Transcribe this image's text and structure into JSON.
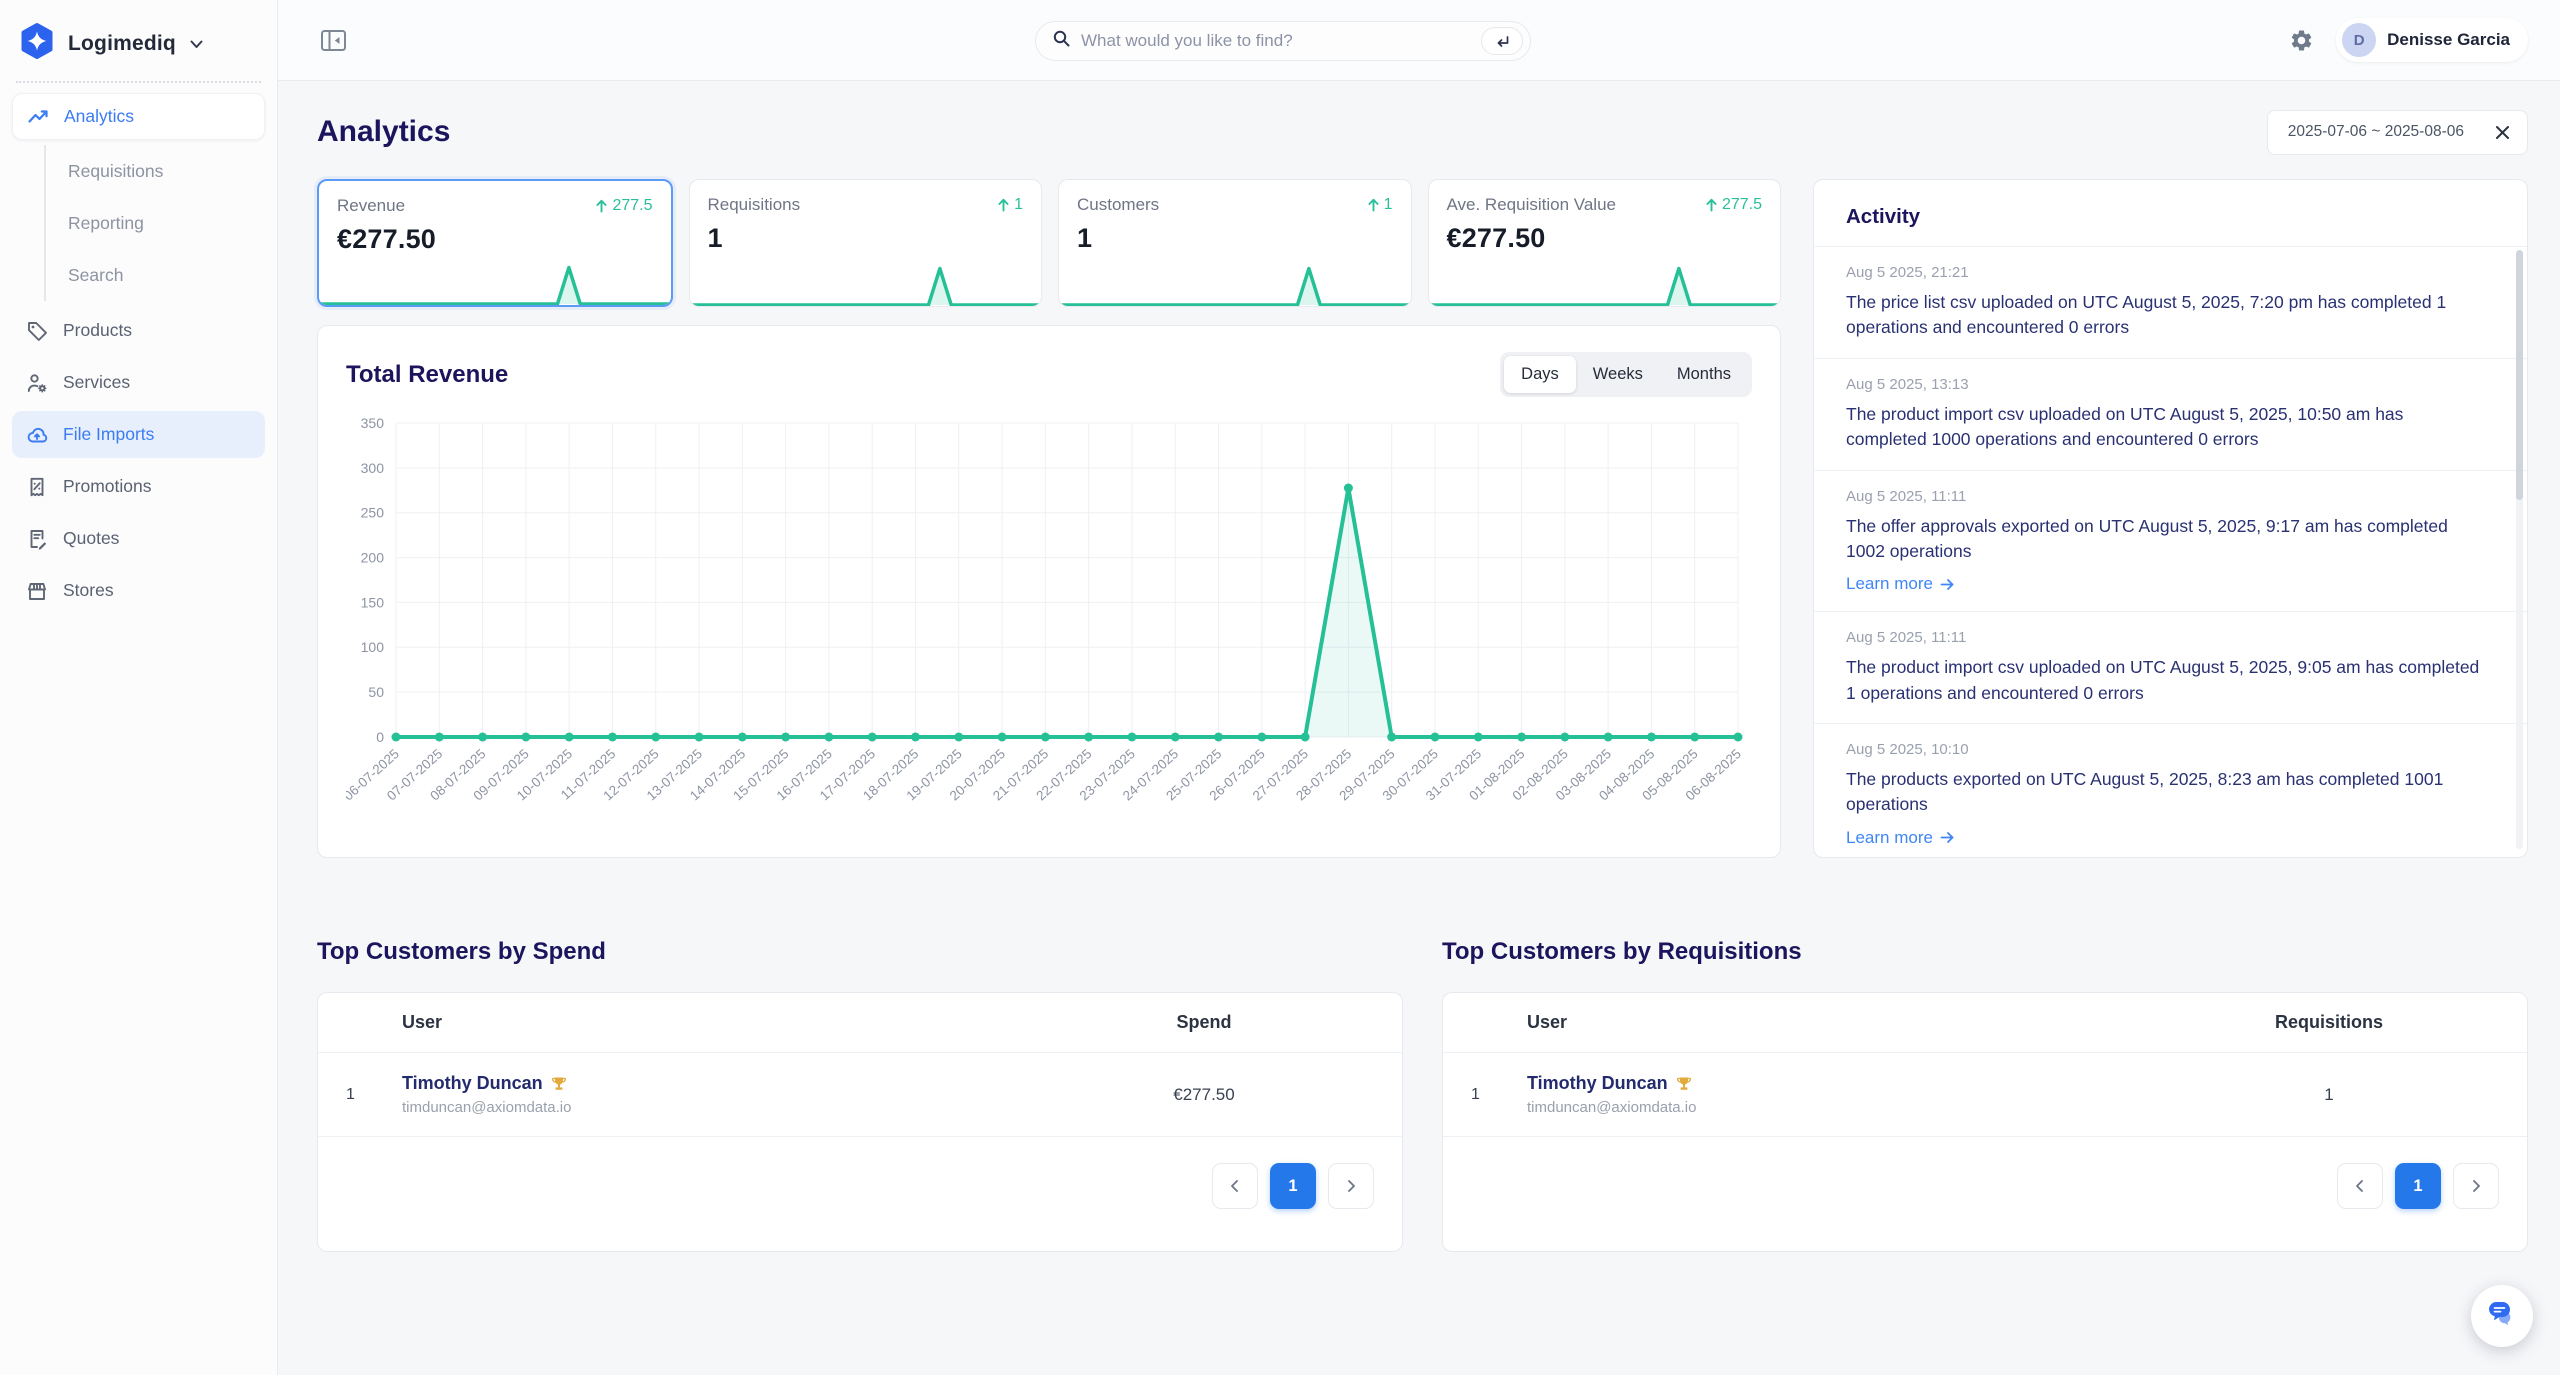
{
  "brand": {
    "name": "Logimediq"
  },
  "topbar": {
    "search_placeholder": "What would you like to find?",
    "user": {
      "name": "Denisse Garcia",
      "initial": "D"
    }
  },
  "sidebar": {
    "items": [
      {
        "label": "Analytics",
        "active": true
      },
      {
        "label": "Requisitions"
      },
      {
        "label": "Reporting"
      },
      {
        "label": "Search"
      },
      {
        "label": "Products"
      },
      {
        "label": "Services"
      },
      {
        "label": "File Imports",
        "selected": true
      },
      {
        "label": "Promotions"
      },
      {
        "label": "Quotes"
      },
      {
        "label": "Stores"
      }
    ]
  },
  "page": {
    "title": "Analytics",
    "date_range": "2025-07-06 ~ 2025-08-06"
  },
  "kpis": [
    {
      "label": "Revenue",
      "delta": "277.5",
      "value": "€277.50",
      "selected": true
    },
    {
      "label": "Requisitions",
      "delta": "1",
      "value": "1"
    },
    {
      "label": "Customers",
      "delta": "1",
      "value": "1"
    },
    {
      "label": "Ave. Requisition Value",
      "delta": "277.5",
      "value": "€277.50"
    }
  ],
  "revenue_chart": {
    "title": "Total Revenue",
    "tabs": [
      {
        "label": "Days",
        "active": true
      },
      {
        "label": "Weeks"
      },
      {
        "label": "Months"
      }
    ]
  },
  "chart_data": {
    "type": "line",
    "title": "Total Revenue",
    "x": [
      "06-07-2025",
      "07-07-2025",
      "08-07-2025",
      "09-07-2025",
      "10-07-2025",
      "11-07-2025",
      "12-07-2025",
      "13-07-2025",
      "14-07-2025",
      "15-07-2025",
      "16-07-2025",
      "17-07-2025",
      "18-07-2025",
      "19-07-2025",
      "20-07-2025",
      "21-07-2025",
      "22-07-2025",
      "23-07-2025",
      "24-07-2025",
      "25-07-2025",
      "26-07-2025",
      "27-07-2025",
      "28-07-2025",
      "29-07-2025",
      "30-07-2025",
      "31-07-2025",
      "01-08-2025",
      "02-08-2025",
      "03-08-2025",
      "04-08-2025",
      "05-08-2025",
      "06-08-2025"
    ],
    "values": [
      0,
      0,
      0,
      0,
      0,
      0,
      0,
      0,
      0,
      0,
      0,
      0,
      0,
      0,
      0,
      0,
      0,
      0,
      0,
      0,
      0,
      0,
      277.5,
      0,
      0,
      0,
      0,
      0,
      0,
      0,
      0,
      0
    ],
    "ylim": [
      0,
      350
    ],
    "yticks": [
      0,
      50,
      100,
      150,
      200,
      250,
      300,
      350
    ],
    "xlabel": "",
    "ylabel": "",
    "grid": true,
    "legend": false,
    "series_color": "#26c096"
  },
  "activity": {
    "title": "Activity",
    "items": [
      {
        "time": "Aug 5 2025, 21:21",
        "message": "The price list csv uploaded on UTC August 5, 2025, 7:20 pm has completed 1 operations and encountered 0 errors"
      },
      {
        "time": "Aug 5 2025, 13:13",
        "message": "The product import csv uploaded on UTC August 5, 2025, 10:50 am has completed 1000 operations and encountered 0 errors"
      },
      {
        "time": "Aug 5 2025, 11:11",
        "message": "The offer approvals exported on UTC August 5, 2025, 9:17 am has completed 1002 operations",
        "link": "Learn more"
      },
      {
        "time": "Aug 5 2025, 11:11",
        "message": "The product import csv uploaded on UTC August 5, 2025, 9:05 am has completed 1 operations and encountered 0 errors"
      },
      {
        "time": "Aug 5 2025, 10:10",
        "message": "The products exported on UTC August 5, 2025, 8:23 am has completed 1001 operations",
        "link": "Learn more"
      }
    ]
  },
  "tables": [
    {
      "title": "Top Customers by Spend",
      "user_header": "User",
      "value_header": "Spend",
      "rows": [
        {
          "rank": "1",
          "name": "Timothy Duncan",
          "email": "timduncan@axiomdata.io",
          "value": "€277.50"
        }
      ],
      "page": "1"
    },
    {
      "title": "Top Customers by Requisitions",
      "user_header": "User",
      "value_header": "Requisitions",
      "rows": [
        {
          "rank": "1",
          "name": "Timothy Duncan",
          "email": "timduncan@axiomdata.io",
          "value": "1"
        }
      ],
      "page": "1"
    }
  ],
  "icons": {
    "brand-logo-icon": "blue hexagon with white four-point sparkle",
    "trophy-icon": "gold trophy",
    "delta-up-icon": "arrow-up",
    "search-icon": "magnifier",
    "enter-icon": "return-arrow",
    "gear-icon": "settings gear",
    "chat-icon": "chat bubbles"
  },
  "colors": {
    "primary_blue": "#3b7cf3",
    "accent_green": "#26c096",
    "heading_navy": "#1c155e",
    "pagination_active": "#2578ea"
  }
}
